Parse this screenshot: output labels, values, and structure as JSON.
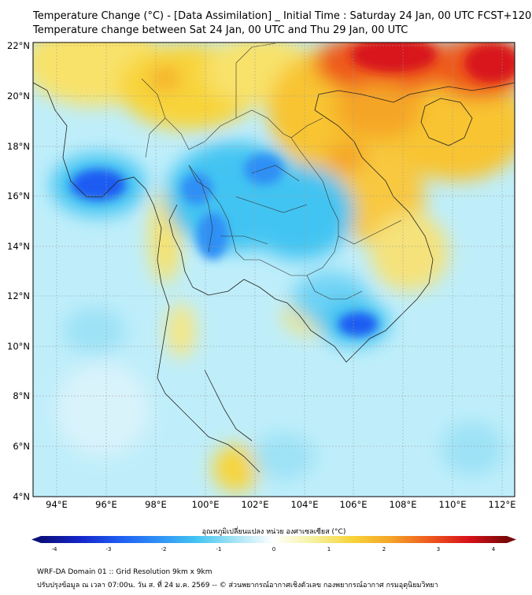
{
  "header": {
    "title_line1": "Temperature Change (°C) - [Data Assimilation] _ Initial Time : Saturday 24 Jan, 00 UTC FCST+120",
    "title_line2": "Temperature change between Sat 24 Jan, 00 UTC and Thu 29 Jan, 00 UTC"
  },
  "map": {
    "lat_labels": [
      "22°N",
      "20°N",
      "18°N",
      "16°N",
      "14°N",
      "12°N",
      "10°N",
      "8°N",
      "6°N",
      "4°N"
    ],
    "lon_labels": [
      "94°E",
      "96°E",
      "98°E",
      "100°E",
      "102°E",
      "104°E",
      "106°E",
      "108°E",
      "110°E",
      "112°E"
    ]
  },
  "colorbar": {
    "title": "อุณหภูมิเปลี่ยนแปลง หน่วย องศาเซลเซียส (°C)",
    "ticks": [
      "-4",
      "-3",
      "-2",
      "-1",
      "0",
      "1",
      "2",
      "3",
      "4"
    ],
    "colors": [
      "#0a0f7a",
      "#1525c8",
      "#1f5cf2",
      "#2f8ff5",
      "#42c4f2",
      "#a6e4f5",
      "#ffffff",
      "#f5f2a0",
      "#f8d43a",
      "#f5a528",
      "#ee5a1e",
      "#d8121a",
      "#7a0808"
    ]
  },
  "footer": {
    "line1": "WRF-DA Domain 01 :: Grid Resolution 9km x 9km",
    "line2": "ปรับปรุงข้อมูล ณ เวลา 07:00น. วัน ส. ที่ 24 ม.ค. 2569 -- © ส่วนพยากรณ์อากาศเชิงตัวเลข กองพยากรณ์อากาศ กรมอุตุนิยมวิทยา"
  }
}
